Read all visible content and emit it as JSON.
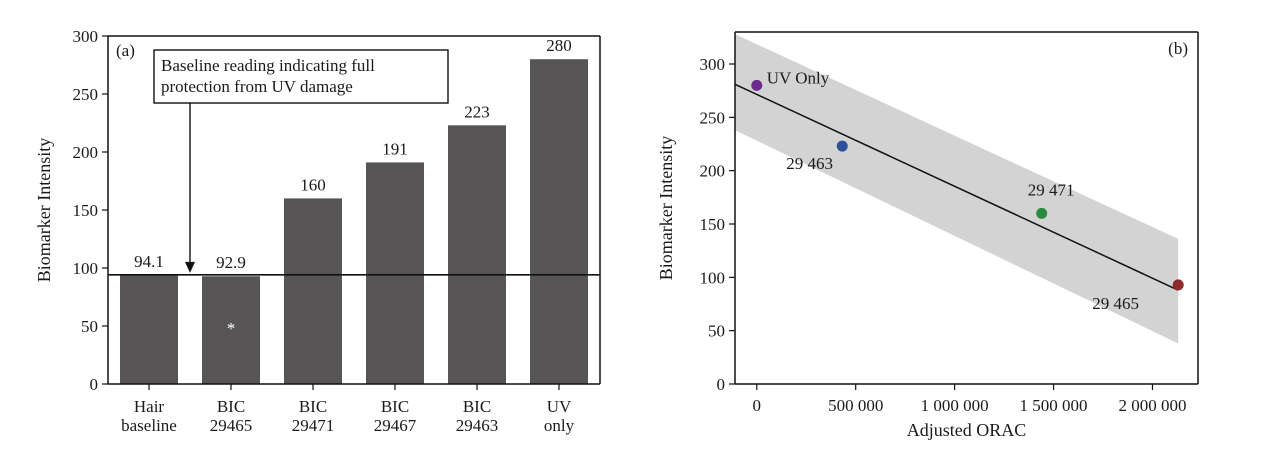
{
  "chart_data": [
    {
      "type": "bar",
      "panel_label": "(a)",
      "categories": [
        [
          "Hair",
          "baseline"
        ],
        [
          "BIC",
          "29465"
        ],
        [
          "BIC",
          "29471"
        ],
        [
          "BIC",
          "29467"
        ],
        [
          "BIC",
          "29463"
        ],
        [
          "UV",
          "only"
        ]
      ],
      "values": [
        94.1,
        92.9,
        160,
        191,
        223,
        280
      ],
      "value_labels": [
        "94.1",
        "92.9",
        "160",
        "191",
        "223",
        "280"
      ],
      "ylabel": "Biomarker Intensity",
      "xlabel": "",
      "ylim": [
        0,
        300
      ],
      "yticks": [
        0,
        50,
        100,
        150,
        200,
        250,
        300
      ],
      "bar_color": "#565454",
      "reference_line": {
        "value": 94.1
      },
      "annotation": {
        "lines": [
          "Baseline reading indicating full",
          "protection from UV damage"
        ],
        "points_to_category": 1
      },
      "marker": {
        "category": 1,
        "symbol": "*",
        "value": 50
      },
      "grid": false
    },
    {
      "type": "scatter",
      "panel_label": "(b)",
      "points": [
        {
          "x": 0,
          "y": 280,
          "label": "UV Only",
          "color": "#6a2b8c"
        },
        {
          "x": 432000,
          "y": 223,
          "label": "29 463",
          "color": "#2e4f9c"
        },
        {
          "x": 1440000,
          "y": 160,
          "label": "29 471",
          "color": "#2b8a3e"
        },
        {
          "x": 2130000,
          "y": 92.9,
          "label": "29 465",
          "color": "#8e2a2a"
        }
      ],
      "fit_line": {
        "x": [
          -110000,
          2130000
        ],
        "y": [
          281,
          88
        ]
      },
      "confidence_band": {
        "x": [
          -110000,
          2130000
        ],
        "upper": [
          328,
          136
        ],
        "lower": [
          238,
          38
        ]
      },
      "band_color": "#d3d3d3",
      "xlabel": "Adjusted ORAC",
      "ylabel": "Biomarker Intensity",
      "xlim": [
        -110000,
        2230000
      ],
      "ylim": [
        0,
        330
      ],
      "xticks": [
        0,
        500000,
        1000000,
        1500000,
        2000000
      ],
      "xtick_labels": [
        "0",
        "500 000",
        "1 000 000",
        "1 500 000",
        "2 000 000"
      ],
      "yticks": [
        0,
        50,
        100,
        150,
        200,
        250,
        300
      ],
      "grid": false
    }
  ]
}
